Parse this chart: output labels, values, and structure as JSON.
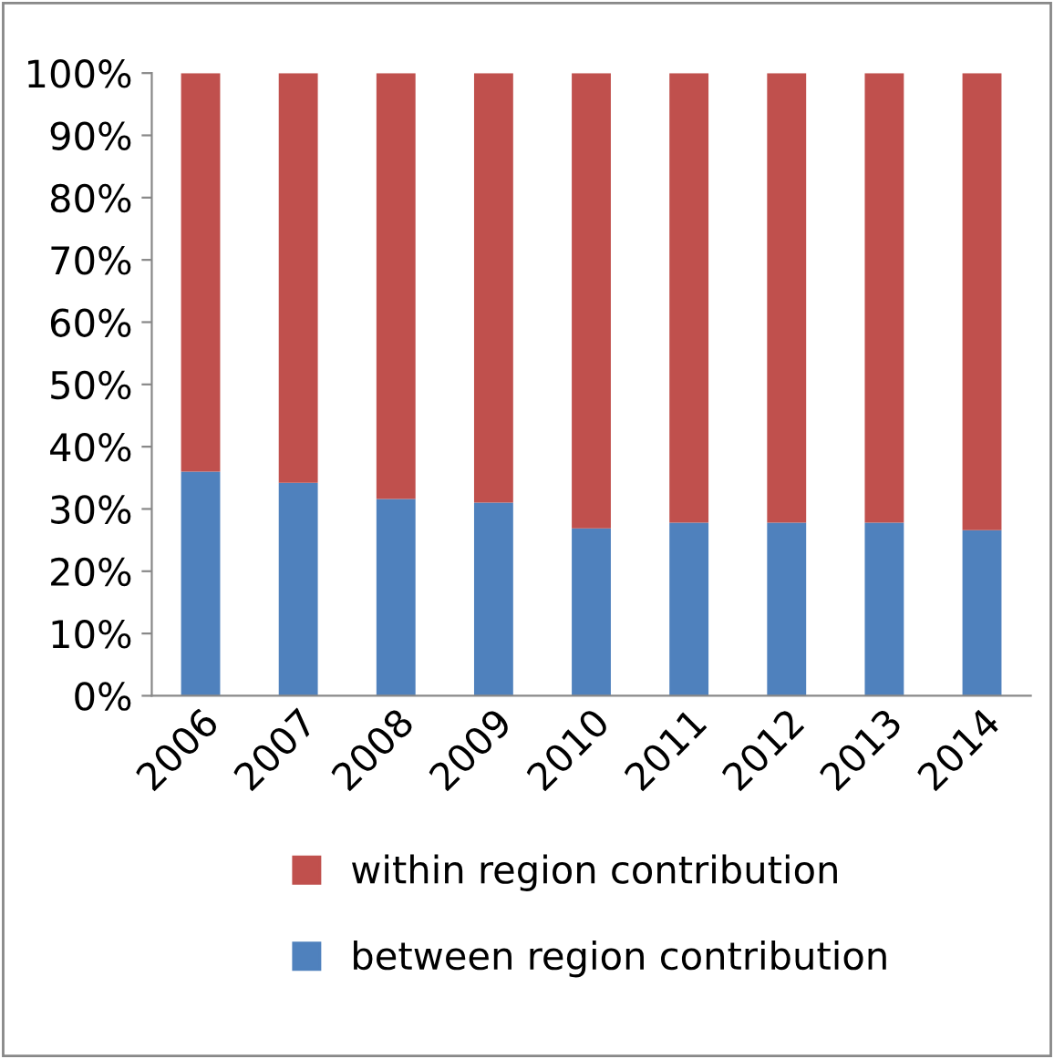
{
  "chart_data": {
    "type": "bar",
    "stacked": true,
    "categories": [
      "2006",
      "2007",
      "2008",
      "2009",
      "2010",
      "2011",
      "2012",
      "2013",
      "2014"
    ],
    "series": [
      {
        "name": "between region contribution",
        "color": "#4f81bd",
        "values": [
          36,
          34.2,
          31.6,
          31,
          26.9,
          27.8,
          27.8,
          27.8,
          26.6
        ]
      },
      {
        "name": "within region contribution",
        "color": "#c0504d",
        "values": [
          64,
          65.8,
          68.4,
          69,
          73.1,
          72.2,
          72.2,
          72.2,
          73.4
        ]
      }
    ],
    "ylim": [
      0,
      100
    ],
    "yticks": [
      {
        "value": 0,
        "label": "0%"
      },
      {
        "value": 10,
        "label": "10%"
      },
      {
        "value": 20,
        "label": "20%"
      },
      {
        "value": 30,
        "label": "30%"
      },
      {
        "value": 40,
        "label": "40%"
      },
      {
        "value": 50,
        "label": "50%"
      },
      {
        "value": 60,
        "label": "60%"
      },
      {
        "value": 70,
        "label": "70%"
      },
      {
        "value": 80,
        "label": "80%"
      },
      {
        "value": 90,
        "label": "90%"
      },
      {
        "value": 100,
        "label": "100%"
      }
    ],
    "grid": false,
    "legend": "bottom"
  }
}
